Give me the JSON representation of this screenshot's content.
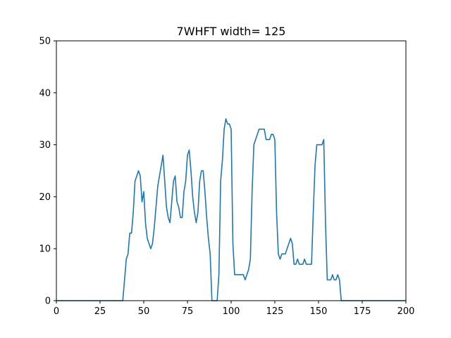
{
  "chart_data": {
    "type": "line",
    "title": "7WHFT width= 125",
    "xlabel": "",
    "ylabel": "",
    "xlim": [
      0,
      200
    ],
    "ylim": [
      0,
      50
    ],
    "xticks": [
      0,
      25,
      50,
      75,
      100,
      125,
      150,
      175,
      200
    ],
    "yticks": [
      0,
      10,
      20,
      30,
      40,
      50
    ],
    "grid": false,
    "line_color": "#1f77b4",
    "series": [
      {
        "x": [
          0,
          38,
          40,
          41,
          42,
          43,
          44,
          45,
          47,
          48,
          49,
          50,
          51,
          52,
          53,
          54,
          55,
          56,
          57,
          58,
          59,
          60,
          61,
          62,
          63,
          64,
          65,
          66,
          67,
          68,
          69,
          70,
          71,
          72,
          73,
          74,
          75,
          76,
          77,
          78,
          79,
          80,
          81,
          82,
          83,
          84,
          85,
          86,
          87,
          88,
          89,
          90,
          91,
          92,
          93,
          94,
          95,
          96,
          97,
          98,
          99,
          100,
          101,
          102,
          103,
          104,
          105,
          106,
          107,
          108,
          109,
          110,
          111,
          112,
          113,
          114,
          115,
          116,
          117,
          118,
          119,
          120,
          121,
          122,
          123,
          124,
          125,
          126,
          127,
          128,
          129,
          130,
          131,
          132,
          133,
          134,
          135,
          136,
          137,
          138,
          139,
          140,
          141,
          142,
          143,
          144,
          145,
          146,
          147,
          148,
          149,
          150,
          151,
          152,
          153,
          154,
          155,
          156,
          157,
          158,
          159,
          160,
          161,
          162,
          163,
          164,
          200
        ],
        "y": [
          0,
          0,
          8,
          9,
          13,
          13,
          17,
          23,
          25,
          24,
          19,
          21,
          15,
          12,
          11,
          10,
          11,
          14,
          18,
          22,
          24,
          26,
          28,
          23,
          18,
          16,
          15,
          19,
          23,
          24,
          19,
          18,
          16,
          16,
          21,
          23,
          28,
          29,
          25,
          20,
          17,
          15,
          17,
          23,
          25,
          25,
          21,
          16,
          12,
          9,
          0,
          0,
          0,
          0,
          5,
          23,
          27,
          33,
          35,
          34,
          34,
          33,
          11,
          5,
          5,
          5,
          5,
          5,
          5,
          4,
          5,
          6,
          8,
          21,
          30,
          31,
          32,
          33,
          33,
          33,
          33,
          31,
          31,
          31,
          32,
          32,
          31,
          17,
          9,
          8,
          9,
          9,
          9,
          10,
          11,
          12,
          11,
          7,
          7,
          8,
          7,
          7,
          7,
          8,
          7,
          7,
          7,
          7,
          17,
          26,
          30,
          30,
          30,
          30,
          31,
          15,
          4,
          4,
          4,
          5,
          4,
          4,
          5,
          4,
          0,
          0,
          0
        ]
      }
    ]
  }
}
